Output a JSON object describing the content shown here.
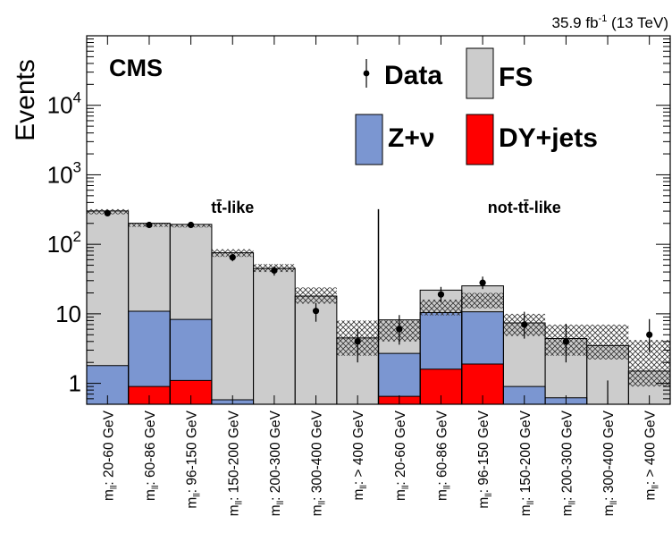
{
  "chart_data": {
    "type": "bar",
    "stacked": true,
    "y_scale": "log",
    "ylim": [
      0.5,
      100000
    ],
    "ylabel": "Events",
    "lumi_label": "35.9 fb",
    "lumi_sup": "-1",
    "lumi_energy": " (13 TeV)",
    "experiment": "CMS",
    "y_tick_labels": [
      {
        "value": 1,
        "label": "1"
      },
      {
        "value": 10,
        "label": "10"
      },
      {
        "value": 100,
        "label": "10",
        "sup": "2"
      },
      {
        "value": 1000,
        "label": "10",
        "sup": "3"
      },
      {
        "value": 10000,
        "label": "10",
        "sup": "4"
      }
    ],
    "categories": [
      "m_ll: 20-60 GeV",
      "m_ll: 60-86 GeV",
      "m_ll: 96-150 GeV",
      "m_ll: 150-200 GeV",
      "m_ll: 200-300 GeV",
      "m_ll: 300-400 GeV",
      "m_ll: > 400 GeV",
      "m_ll: 20-60 GeV",
      "m_ll: 60-86 GeV",
      "m_ll: 96-150 GeV",
      "m_ll: 150-200 GeV",
      "m_ll: 200-300 GeV",
      "m_ll: 300-400 GeV",
      "m_ll: > 400 GeV"
    ],
    "category_parts": [
      {
        "pre": "m",
        "sub": "ll",
        "post": ": 20-60 GeV"
      },
      {
        "pre": "m",
        "sub": "ll",
        "post": ": 60-86 GeV"
      },
      {
        "pre": "m",
        "sub": "ll",
        "post": ": 96-150 GeV"
      },
      {
        "pre": "m",
        "sub": "ll",
        "post": ": 150-200 GeV"
      },
      {
        "pre": "m",
        "sub": "ll",
        "post": ": 200-300 GeV"
      },
      {
        "pre": "m",
        "sub": "ll",
        "post": ": 300-400 GeV"
      },
      {
        "pre": "m",
        "sub": "ll",
        "post": ": > 400 GeV"
      },
      {
        "pre": "m",
        "sub": "ll",
        "post": ": 20-60 GeV"
      },
      {
        "pre": "m",
        "sub": "ll",
        "post": ": 60-86 GeV"
      },
      {
        "pre": "m",
        "sub": "ll",
        "post": ": 96-150 GeV"
      },
      {
        "pre": "m",
        "sub": "ll",
        "post": ": 150-200 GeV"
      },
      {
        "pre": "m",
        "sub": "ll",
        "post": ": 200-300 GeV"
      },
      {
        "pre": "m",
        "sub": "ll",
        "post": ": 300-400 GeV"
      },
      {
        "pre": "m",
        "sub": "ll",
        "post": ": > 400 GeV"
      }
    ],
    "regions": [
      {
        "label": "tt̄-like",
        "bins": [
          0,
          6
        ]
      },
      {
        "label": "not-tt̄-like",
        "bins": [
          7,
          13
        ]
      }
    ],
    "series": [
      {
        "name": "DY+jets",
        "color": "#ff0000",
        "values": [
          0,
          0.9,
          1.1,
          0,
          0,
          0,
          0,
          0.65,
          1.6,
          1.9,
          0,
          0,
          0,
          0
        ]
      },
      {
        "name": "Z+ν",
        "color": "#7b96d1",
        "values": [
          1.8,
          10,
          7.2,
          0.58,
          0,
          0,
          0,
          2.05,
          8.8,
          8.8,
          0.9,
          0.62,
          0,
          0
        ]
      },
      {
        "name": "FS",
        "color": "#cccccc",
        "values": [
          300,
          190,
          185,
          75,
          45,
          18,
          4.5,
          5.5,
          11.5,
          14.5,
          6.5,
          3.8,
          3.5,
          1.5
        ]
      }
    ],
    "uncertainty": [
      [
        270,
        320
      ],
      [
        178,
        203
      ],
      [
        175,
        196
      ],
      [
        66,
        85
      ],
      [
        40,
        52
      ],
      [
        14,
        24
      ],
      [
        2.5,
        8
      ],
      [
        4,
        8
      ],
      [
        9.5,
        16
      ],
      [
        12,
        20
      ],
      [
        4.8,
        10
      ],
      [
        2.5,
        7
      ],
      [
        2.2,
        7
      ],
      [
        0.9,
        4.2
      ]
    ],
    "data": {
      "name": "Data",
      "values": [
        280,
        190,
        190,
        65,
        42,
        11,
        4,
        6,
        19,
        28,
        7,
        4,
        0.5,
        5
      ],
      "err_low": [
        17,
        14,
        14,
        8,
        6.5,
        3.3,
        2,
        2.4,
        4.4,
        5.3,
        2.6,
        2,
        0,
        2.2
      ],
      "err_high": [
        17,
        14,
        14,
        8,
        6.5,
        3.3,
        2,
        3.6,
        5.4,
        6.3,
        3.7,
        3.2,
        0.6,
        3.4
      ]
    },
    "legend": [
      {
        "name": "Data",
        "kind": "marker"
      },
      {
        "name": "FS",
        "color": "#cccccc"
      },
      {
        "name": "Z+ν",
        "color": "#7b96d1"
      },
      {
        "name": "DY+jets",
        "color": "#ff0000"
      }
    ]
  }
}
